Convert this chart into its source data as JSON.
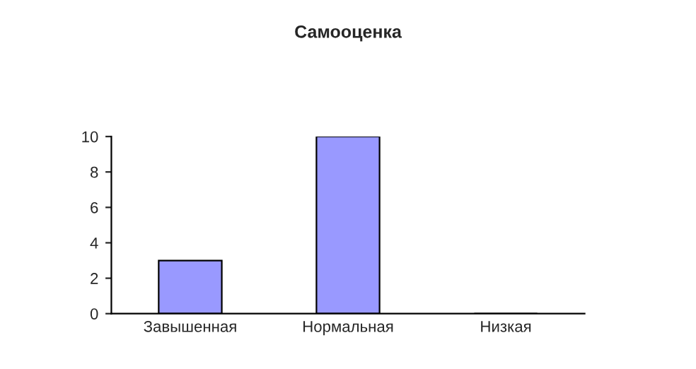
{
  "chart_data": {
    "type": "bar",
    "title": "Самооценка",
    "categories": [
      "Завышенная",
      "Нормальная",
      "Низкая"
    ],
    "values": [
      3,
      10,
      0
    ],
    "color": "#9999ff",
    "ylim": [
      0,
      10
    ],
    "yticks": [
      0,
      2,
      4,
      6,
      8,
      10
    ],
    "grid": false,
    "legend": false
  }
}
